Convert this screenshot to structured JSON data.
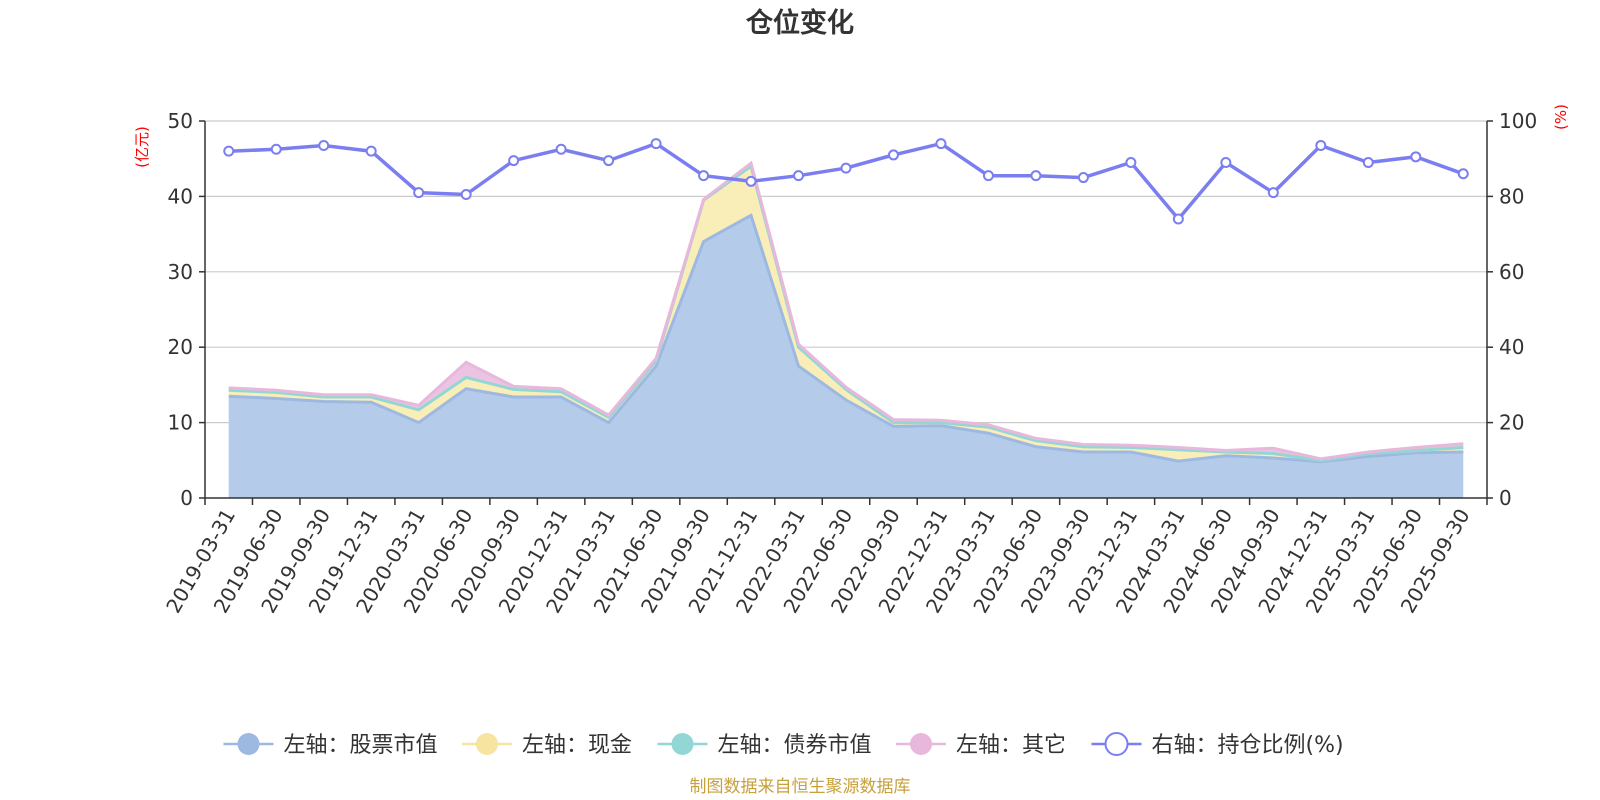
{
  "chart_data": {
    "type": "area",
    "title": "仓位变化",
    "left_axis": {
      "label": "(亿元)",
      "ylim": [
        0,
        50
      ],
      "ticks": [
        0,
        10,
        20,
        30,
        40,
        50
      ]
    },
    "right_axis": {
      "label": "(%)",
      "ylim": [
        0,
        100
      ],
      "ticks": [
        0,
        20,
        40,
        60,
        80,
        100
      ]
    },
    "categories": [
      "2019-03-31",
      "2019-06-30",
      "2019-09-30",
      "2019-12-31",
      "2020-03-31",
      "2020-06-30",
      "2020-09-30",
      "2020-12-31",
      "2021-03-31",
      "2021-06-30",
      "2021-09-30",
      "2021-12-31",
      "2022-03-31",
      "2022-06-30",
      "2022-09-30",
      "2022-12-31",
      "2023-03-31",
      "2023-06-30",
      "2023-09-30",
      "2023-12-31",
      "2024-03-31",
      "2024-06-30",
      "2024-09-30",
      "2024-12-31",
      "2025-03-31",
      "2025-06-30",
      "2025-09-30"
    ],
    "series": [
      {
        "name": "左轴：股票市值",
        "axis": "left",
        "stack": true,
        "color": "#9db9e2",
        "fill": "#b5cbea",
        "values": [
          13.5,
          13.2,
          12.8,
          12.7,
          10.0,
          14.5,
          13.4,
          13.4,
          10.0,
          17.5,
          34.0,
          37.5,
          17.5,
          13.0,
          9.5,
          9.6,
          8.6,
          6.8,
          6.1,
          6.1,
          4.9,
          5.6,
          5.3,
          4.8,
          5.5,
          6.0,
          6.1
        ]
      },
      {
        "name": "左轴：现金",
        "axis": "left",
        "stack": true,
        "color": "#f6e4a0",
        "fill": "#f9edb8",
        "values": [
          0.8,
          0.8,
          0.6,
          0.7,
          1.7,
          1.5,
          1.0,
          0.7,
          0.7,
          0.7,
          5.5,
          6.5,
          2.5,
          1.4,
          0.5,
          0.4,
          0.8,
          0.8,
          0.7,
          0.6,
          1.5,
          0.5,
          0.6,
          0.2,
          0.4,
          0.3,
          0.6
        ]
      },
      {
        "name": "左轴：债券市值",
        "axis": "left",
        "stack": true,
        "color": "#93d6d6",
        "fill": "#a8dede",
        "values": [
          0,
          0,
          0,
          0,
          0,
          0,
          0,
          0,
          0,
          0,
          0,
          0,
          0,
          0,
          0,
          0,
          0,
          0,
          0,
          0,
          0,
          0,
          0,
          0,
          0,
          0,
          0
        ]
      },
      {
        "name": "左轴：其它",
        "axis": "left",
        "stack": true,
        "color": "#e7b8dc",
        "fill": "#ecc3e3",
        "values": [
          0.3,
          0.3,
          0.3,
          0.3,
          0.6,
          2.0,
          0.4,
          0.4,
          0.3,
          0.3,
          0.1,
          0.4,
          0.4,
          0.3,
          0.4,
          0.3,
          0.3,
          0.3,
          0.3,
          0.3,
          0.3,
          0.2,
          0.7,
          0.2,
          0.2,
          0.4,
          0.5
        ]
      },
      {
        "name": "右轴：持仓比例(%)",
        "axis": "right",
        "type": "line",
        "color": "#7b7ef0",
        "values": [
          92.0,
          92.5,
          93.5,
          92.0,
          81.0,
          80.5,
          89.5,
          92.5,
          89.5,
          94.0,
          85.5,
          84.0,
          85.5,
          87.5,
          91.0,
          94.0,
          85.5,
          85.5,
          85.0,
          89.0,
          74.0,
          89.0,
          81.0,
          93.5,
          89.0,
          90.5,
          86.0
        ]
      }
    ],
    "legend_position": "bottom",
    "grid": true
  },
  "legend": [
    {
      "label": "左轴：股票市值",
      "color": "#9db9e2",
      "marker": "filled"
    },
    {
      "label": "左轴：现金",
      "color": "#f6e4a0",
      "marker": "filled"
    },
    {
      "label": "左轴：债券市值",
      "color": "#93d6d6",
      "marker": "filled"
    },
    {
      "label": "左轴：其它",
      "color": "#e7b8dc",
      "marker": "filled"
    },
    {
      "label": "右轴：持仓比例(%)",
      "color": "#7b7ef0",
      "marker": "hollow"
    }
  ],
  "source": "制图数据来自恒生聚源数据库"
}
